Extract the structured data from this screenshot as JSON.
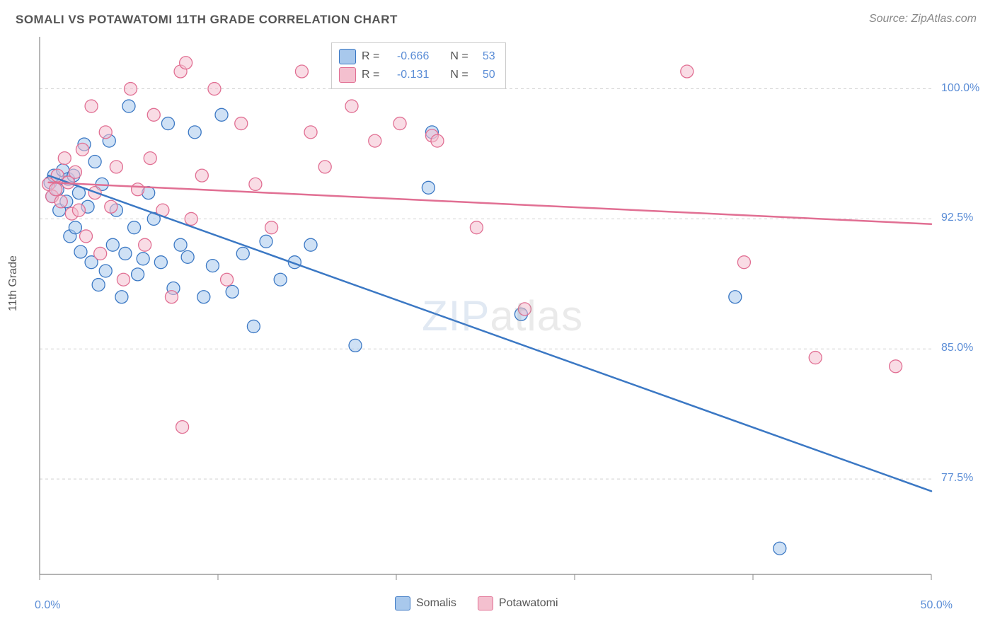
{
  "title": "SOMALI VS POTAWATOMI 11TH GRADE CORRELATION CHART",
  "source": "Source: ZipAtlas.com",
  "ylabel": "11th Grade",
  "watermark": {
    "bold": "ZIP",
    "light": "atlas"
  },
  "colors": {
    "blue_stroke": "#3b78c4",
    "blue_fill": "#a8c8ec",
    "pink_stroke": "#e16f93",
    "pink_fill": "#f4c0cf",
    "grid": "#d0d0d0",
    "axis": "#888888",
    "tick_text": "#5b8dd6",
    "label_text": "#555"
  },
  "chart": {
    "type": "scatter",
    "xlim": [
      0,
      50
    ],
    "ylim": [
      72,
      103
    ],
    "xticks": [
      0,
      10,
      20,
      30,
      40,
      50
    ],
    "xtick_first_label": "0.0%",
    "xtick_last_label": "50.0%",
    "yticks": [
      77.5,
      85.0,
      92.5,
      100.0
    ],
    "ytick_labels": [
      "77.5%",
      "85.0%",
      "92.5%",
      "100.0%"
    ],
    "marker_r": 9,
    "line_width": 2.5,
    "series": [
      {
        "key": "somalis",
        "label": "Somalis",
        "color_stroke": "#3b78c4",
        "color_fill": "#a8c8ec",
        "R": "-0.666",
        "N": "53",
        "trend": {
          "x1": 0.5,
          "y1": 95.0,
          "x2": 50,
          "y2": 76.8
        },
        "points": [
          [
            0.6,
            94.6
          ],
          [
            0.7,
            93.8
          ],
          [
            0.8,
            95.0
          ],
          [
            1.0,
            94.2
          ],
          [
            1.1,
            93.0
          ],
          [
            1.3,
            95.3
          ],
          [
            1.5,
            93.5
          ],
          [
            1.6,
            94.8
          ],
          [
            1.7,
            91.5
          ],
          [
            1.9,
            95.0
          ],
          [
            2.0,
            92.0
          ],
          [
            2.2,
            94.0
          ],
          [
            2.3,
            90.6
          ],
          [
            2.5,
            96.8
          ],
          [
            2.7,
            93.2
          ],
          [
            2.9,
            90.0
          ],
          [
            3.1,
            95.8
          ],
          [
            3.3,
            88.7
          ],
          [
            3.5,
            94.5
          ],
          [
            3.7,
            89.5
          ],
          [
            3.9,
            97.0
          ],
          [
            4.1,
            91.0
          ],
          [
            4.3,
            93.0
          ],
          [
            4.6,
            88.0
          ],
          [
            4.8,
            90.5
          ],
          [
            5.0,
            99.0
          ],
          [
            5.3,
            92.0
          ],
          [
            5.5,
            89.3
          ],
          [
            5.8,
            90.2
          ],
          [
            6.1,
            94.0
          ],
          [
            6.4,
            92.5
          ],
          [
            6.8,
            90.0
          ],
          [
            7.2,
            98.0
          ],
          [
            7.5,
            88.5
          ],
          [
            7.9,
            91.0
          ],
          [
            8.3,
            90.3
          ],
          [
            8.7,
            97.5
          ],
          [
            9.2,
            88.0
          ],
          [
            9.7,
            89.8
          ],
          [
            10.2,
            98.5
          ],
          [
            10.8,
            88.3
          ],
          [
            11.4,
            90.5
          ],
          [
            12.0,
            86.3
          ],
          [
            12.7,
            91.2
          ],
          [
            13.5,
            89.0
          ],
          [
            14.3,
            90.0
          ],
          [
            15.2,
            91.0
          ],
          [
            17.7,
            85.2
          ],
          [
            21.8,
            94.3
          ],
          [
            22.0,
            97.5
          ],
          [
            27.0,
            87.0
          ],
          [
            39.0,
            88.0
          ],
          [
            41.5,
            73.5
          ]
        ]
      },
      {
        "key": "potawatomi",
        "label": "Potawatomi",
        "color_stroke": "#e16f93",
        "color_fill": "#f4c0cf",
        "R": "-0.131",
        "N": "50",
        "trend": {
          "x1": 0.5,
          "y1": 94.6,
          "x2": 50,
          "y2": 92.2
        },
        "points": [
          [
            0.5,
            94.5
          ],
          [
            0.7,
            93.8
          ],
          [
            0.9,
            94.2
          ],
          [
            1.0,
            95.0
          ],
          [
            1.2,
            93.5
          ],
          [
            1.4,
            96.0
          ],
          [
            1.6,
            94.6
          ],
          [
            1.8,
            92.8
          ],
          [
            2.0,
            95.2
          ],
          [
            2.2,
            93.0
          ],
          [
            2.4,
            96.5
          ],
          [
            2.6,
            91.5
          ],
          [
            2.9,
            99.0
          ],
          [
            3.1,
            94.0
          ],
          [
            3.4,
            90.5
          ],
          [
            3.7,
            97.5
          ],
          [
            4.0,
            93.2
          ],
          [
            4.3,
            95.5
          ],
          [
            4.7,
            89.0
          ],
          [
            5.1,
            100.0
          ],
          [
            5.5,
            94.2
          ],
          [
            5.9,
            91.0
          ],
          [
            6.4,
            98.5
          ],
          [
            6.9,
            93.0
          ],
          [
            7.4,
            88.0
          ],
          [
            7.9,
            101.0
          ],
          [
            8.5,
            92.5
          ],
          [
            9.1,
            95.0
          ],
          [
            9.8,
            100.0
          ],
          [
            10.5,
            89.0
          ],
          [
            11.3,
            98.0
          ],
          [
            12.1,
            94.5
          ],
          [
            13.0,
            92.0
          ],
          [
            14.7,
            101.0
          ],
          [
            15.2,
            97.5
          ],
          [
            17.5,
            99.0
          ],
          [
            18.8,
            97.0
          ],
          [
            20.2,
            98.0
          ],
          [
            22.0,
            97.3
          ],
          [
            22.3,
            97.0
          ],
          [
            24.5,
            92.0
          ],
          [
            27.2,
            87.3
          ],
          [
            8.0,
            80.5
          ],
          [
            8.2,
            101.5
          ],
          [
            36.3,
            101.0
          ],
          [
            39.5,
            90.0
          ],
          [
            43.5,
            84.5
          ],
          [
            48.0,
            84.0
          ],
          [
            6.2,
            96.0
          ],
          [
            16.0,
            95.5
          ]
        ]
      }
    ],
    "legend_top_labels": {
      "R": "R =",
      "N": "N ="
    },
    "legend_bottom_order": [
      "somalis",
      "potawatomi"
    ]
  }
}
